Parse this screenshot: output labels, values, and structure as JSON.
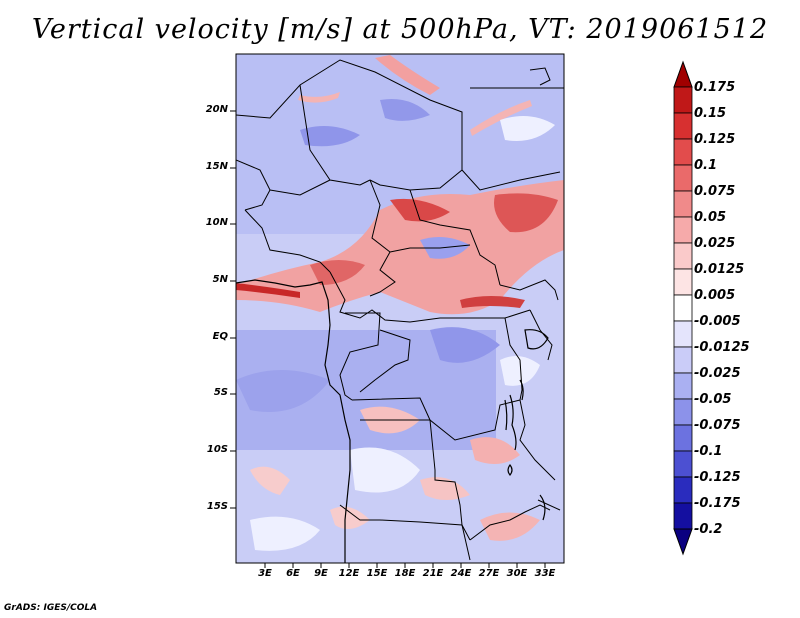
{
  "title": "Vertical velocity [m/s] at 500hPa, VT: 2019061512",
  "credit": "GrADS: IGES/COLA",
  "lat_labels": [
    "20N",
    "15N",
    "10N",
    "5N",
    "EQ",
    "5S",
    "10S",
    "15S"
  ],
  "lon_labels": [
    "3E",
    "6E",
    "9E",
    "12E",
    "15E",
    "18E",
    "21E",
    "24E",
    "27E",
    "30E",
    "33E"
  ],
  "colorbar": {
    "labels": [
      "0.175",
      "0.15",
      "0.125",
      "0.1",
      "0.075",
      "0.05",
      "0.025",
      "0.0125",
      "0.005",
      "-0.005",
      "-0.0125",
      "-0.025",
      "-0.05",
      "-0.075",
      "-0.1",
      "-0.125",
      "-0.175",
      "-0.2"
    ],
    "colors": [
      "#a00000",
      "#c01818",
      "#d73030",
      "#e24c4c",
      "#ea6a6a",
      "#f08a8a",
      "#f6aaaa",
      "#facaca",
      "#fde4e4",
      "#ffffff",
      "#e4e4fc",
      "#caccf8",
      "#aab0f2",
      "#8c92ea",
      "#6c72e0",
      "#4c50d2",
      "#2a2cbe",
      "#140fa0",
      "#0a0080"
    ]
  }
}
